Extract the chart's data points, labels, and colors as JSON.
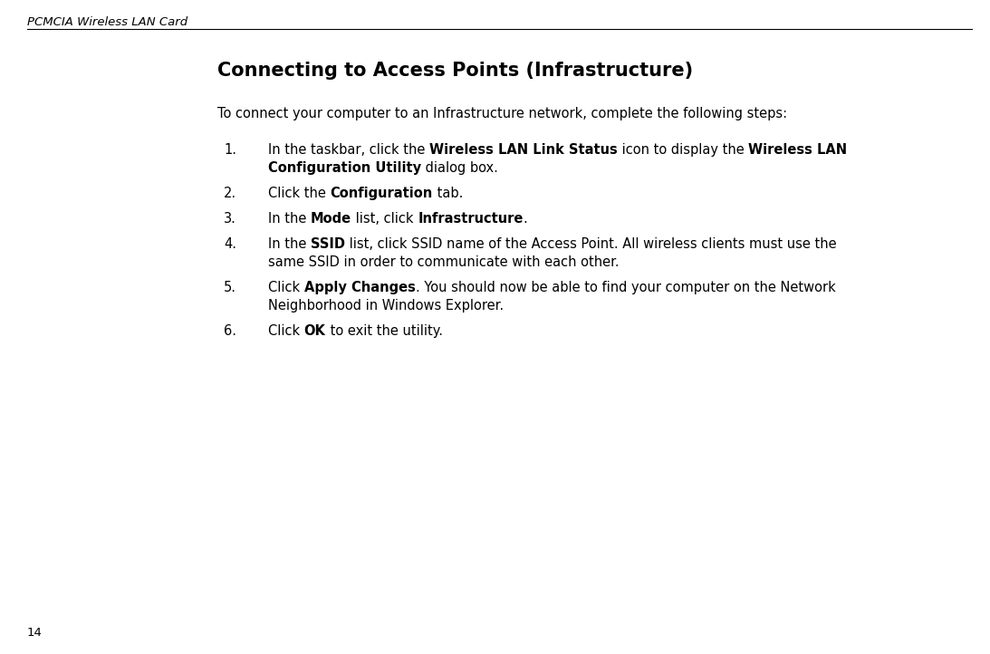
{
  "bg_color": "#ffffff",
  "header_text": "PCMCIA Wireless LAN Card",
  "page_number": "14",
  "title": "Connecting to Access Points (Infrastructure)",
  "intro_text": "To connect your computer to an Infrastructure network, complete the following steps:",
  "body_font_size": 10.5,
  "header_font_size": 9.5,
  "title_font_size": 15.0,
  "items": [
    {
      "number": "1.",
      "lines": [
        [
          {
            "text": "In the taskbar, click the ",
            "bold": false
          },
          {
            "text": "Wireless LAN Link Status",
            "bold": true
          },
          {
            "text": " icon to display the ",
            "bold": false
          },
          {
            "text": "Wireless LAN",
            "bold": true
          }
        ],
        [
          {
            "text": "Configuration Utility",
            "bold": true
          },
          {
            "text": " dialog box.",
            "bold": false
          }
        ]
      ]
    },
    {
      "number": "2.",
      "lines": [
        [
          {
            "text": "Click the ",
            "bold": false
          },
          {
            "text": "Configuration",
            "bold": true
          },
          {
            "text": " tab.",
            "bold": false
          }
        ]
      ]
    },
    {
      "number": "3.",
      "lines": [
        [
          {
            "text": "In the ",
            "bold": false
          },
          {
            "text": "Mode",
            "bold": true
          },
          {
            "text": " list, click ",
            "bold": false
          },
          {
            "text": "Infrastructure",
            "bold": true
          },
          {
            "text": ".",
            "bold": false
          }
        ]
      ]
    },
    {
      "number": "4.",
      "lines": [
        [
          {
            "text": "In the ",
            "bold": false
          },
          {
            "text": "SSID",
            "bold": true
          },
          {
            "text": " list, click SSID name of the Access Point. All wireless clients must use the",
            "bold": false
          }
        ],
        [
          {
            "text": "same SSID in order to communicate with each other.",
            "bold": false
          }
        ]
      ]
    },
    {
      "number": "5.",
      "lines": [
        [
          {
            "text": "Click ",
            "bold": false
          },
          {
            "text": "Apply Changes",
            "bold": true
          },
          {
            "text": ". You should now be able to find your computer on the Network",
            "bold": false
          }
        ],
        [
          {
            "text": "Neighborhood in Windows Explorer.",
            "bold": false
          }
        ]
      ]
    },
    {
      "number": "6.",
      "lines": [
        [
          {
            "text": "Click ",
            "bold": false
          },
          {
            "text": "OK",
            "bold": true
          },
          {
            "text": " to exit the utility.",
            "bold": false
          }
        ]
      ]
    }
  ]
}
